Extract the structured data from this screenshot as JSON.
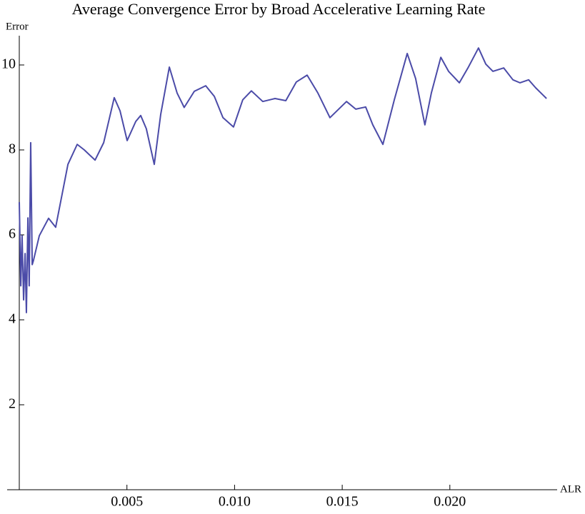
{
  "chart_data": {
    "type": "line",
    "title": "Average Convergence Error by Broad Accelerative Learning Rate",
    "x_label": "ALR",
    "y_label": "Error",
    "x": [
      0,
      7e-05,
      0.00013,
      0.0002,
      0.00027,
      0.00033,
      0.0004,
      0.00046,
      0.00053,
      0.0006,
      0.00066,
      0.00093,
      0.00136,
      0.00169,
      0.00226,
      0.00269,
      0.00302,
      0.00352,
      0.00392,
      0.00441,
      0.00468,
      0.00501,
      0.00541,
      0.00564,
      0.0059,
      0.00627,
      0.00657,
      0.00697,
      0.00733,
      0.00766,
      0.00813,
      0.00866,
      0.00906,
      0.00946,
      0.00995,
      0.01038,
      0.01078,
      0.01131,
      0.01188,
      0.01238,
      0.01287,
      0.01337,
      0.01387,
      0.01443,
      0.0152,
      0.01563,
      0.01609,
      0.01642,
      0.01689,
      0.01742,
      0.01802,
      0.01841,
      0.01884,
      0.01914,
      0.01958,
      0.01994,
      0.02044,
      0.02084,
      0.02133,
      0.02167,
      0.022,
      0.0225,
      0.02293,
      0.02326,
      0.02366,
      0.02399,
      0.02449
    ],
    "values": [
      6.77,
      4.8,
      5.98,
      4.47,
      5.56,
      4.17,
      6.4,
      4.8,
      8.17,
      5.3,
      5.4,
      5.98,
      6.39,
      6.18,
      7.66,
      8.13,
      8.0,
      7.76,
      8.17,
      9.23,
      8.92,
      8.22,
      8.67,
      8.81,
      8.5,
      7.66,
      8.84,
      9.95,
      9.34,
      9.0,
      9.38,
      9.51,
      9.26,
      8.76,
      8.54,
      9.18,
      9.39,
      9.14,
      9.21,
      9.16,
      9.6,
      9.76,
      9.34,
      8.76,
      9.14,
      8.96,
      9.01,
      8.59,
      8.13,
      9.18,
      10.27,
      9.68,
      8.59,
      9.34,
      10.18,
      9.85,
      9.58,
      9.93,
      10.4,
      10.02,
      9.85,
      9.93,
      9.65,
      9.58,
      9.65,
      9.46,
      9.21
    ],
    "color": "#4b4ba8",
    "xlim": [
      0,
      0.025
    ],
    "ylim": [
      0,
      10.6
    ],
    "xticks": [
      0.005,
      {
        "value": 0.01,
        "label": "0.010"
      },
      0.015,
      {
        "value": 0.02,
        "label": "0.020"
      }
    ],
    "yticks": [
      2,
      4,
      6,
      8,
      10
    ]
  }
}
